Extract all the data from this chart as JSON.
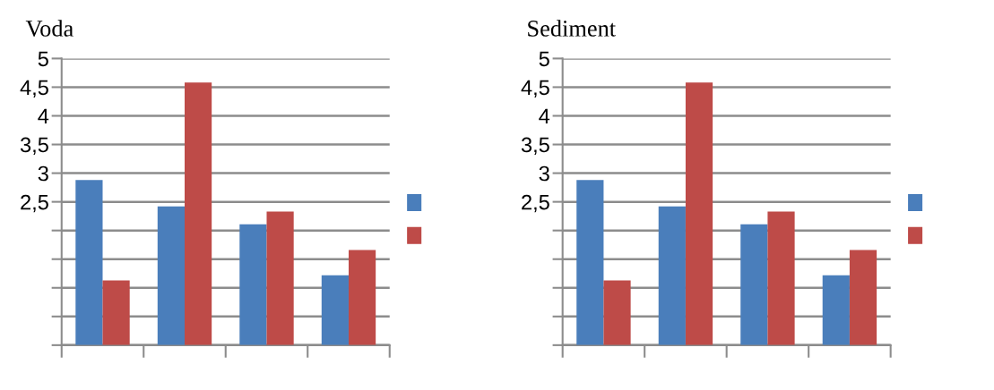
{
  "chart_data": [
    {
      "type": "bar",
      "title": "Voda",
      "categories": [
        null,
        null,
        null,
        null
      ],
      "series": [
        {
          "color": "#4a7ebb",
          "values": [
            2.88,
            2.42,
            2.11,
            1.22
          ]
        },
        {
          "color": "#be4b48",
          "values": [
            1.13,
            4.58,
            2.33,
            1.66
          ]
        }
      ],
      "ylim": [
        0,
        5
      ],
      "yticks": [
        {
          "value": 0,
          "label": null
        },
        {
          "value": 0.5,
          "label": null
        },
        {
          "value": 1,
          "label": null
        },
        {
          "value": 1.5,
          "label": null
        },
        {
          "value": 2,
          "label": null
        },
        {
          "value": 2.5,
          "label": "2,5"
        },
        3,
        {
          "value": 3.5,
          "label": "3,5"
        },
        4,
        {
          "value": 4.5,
          "label": "4,5"
        },
        5
      ],
      "grid": "y"
    },
    {
      "type": "bar",
      "title": "Sediment",
      "categories": [
        null,
        null,
        null,
        null
      ],
      "series": [
        {
          "color": "#4a7ebb",
          "values": [
            2.88,
            2.42,
            2.11,
            1.22
          ]
        },
        {
          "color": "#be4b48",
          "values": [
            1.13,
            4.58,
            2.33,
            1.66
          ]
        }
      ],
      "ylim": [
        0,
        5
      ],
      "yticks": [
        {
          "value": 0,
          "label": null
        },
        {
          "value": 0.5,
          "label": null
        },
        {
          "value": 1,
          "label": null
        },
        {
          "value": 1.5,
          "label": null
        },
        {
          "value": 2,
          "label": null
        },
        {
          "value": 2.5,
          "label": "2,5"
        },
        3,
        {
          "value": 3.5,
          "label": "3,5"
        },
        4,
        {
          "value": 4.5,
          "label": "4,5"
        },
        5
      ],
      "grid": "y"
    }
  ]
}
